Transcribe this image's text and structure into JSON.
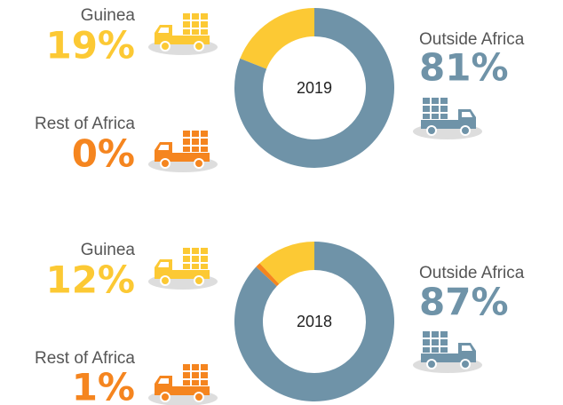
{
  "chart_data": [
    {
      "type": "pie",
      "title": "2019",
      "categories": [
        "Guinea",
        "Rest of Africa",
        "Outside Africa"
      ],
      "values": [
        19,
        0,
        81
      ],
      "value_labels": [
        "19%",
        "0%",
        "81%"
      ],
      "colors": [
        "#fcc934",
        "#f5851f",
        "#6f93a8"
      ]
    },
    {
      "type": "pie",
      "title": "2018",
      "categories": [
        "Guinea",
        "Rest of Africa",
        "Outside Africa"
      ],
      "values": [
        12,
        1,
        87
      ],
      "value_labels": [
        "12%",
        "1%",
        "87%"
      ],
      "colors": [
        "#fcc934",
        "#f5851f",
        "#6f93a8"
      ]
    }
  ]
}
